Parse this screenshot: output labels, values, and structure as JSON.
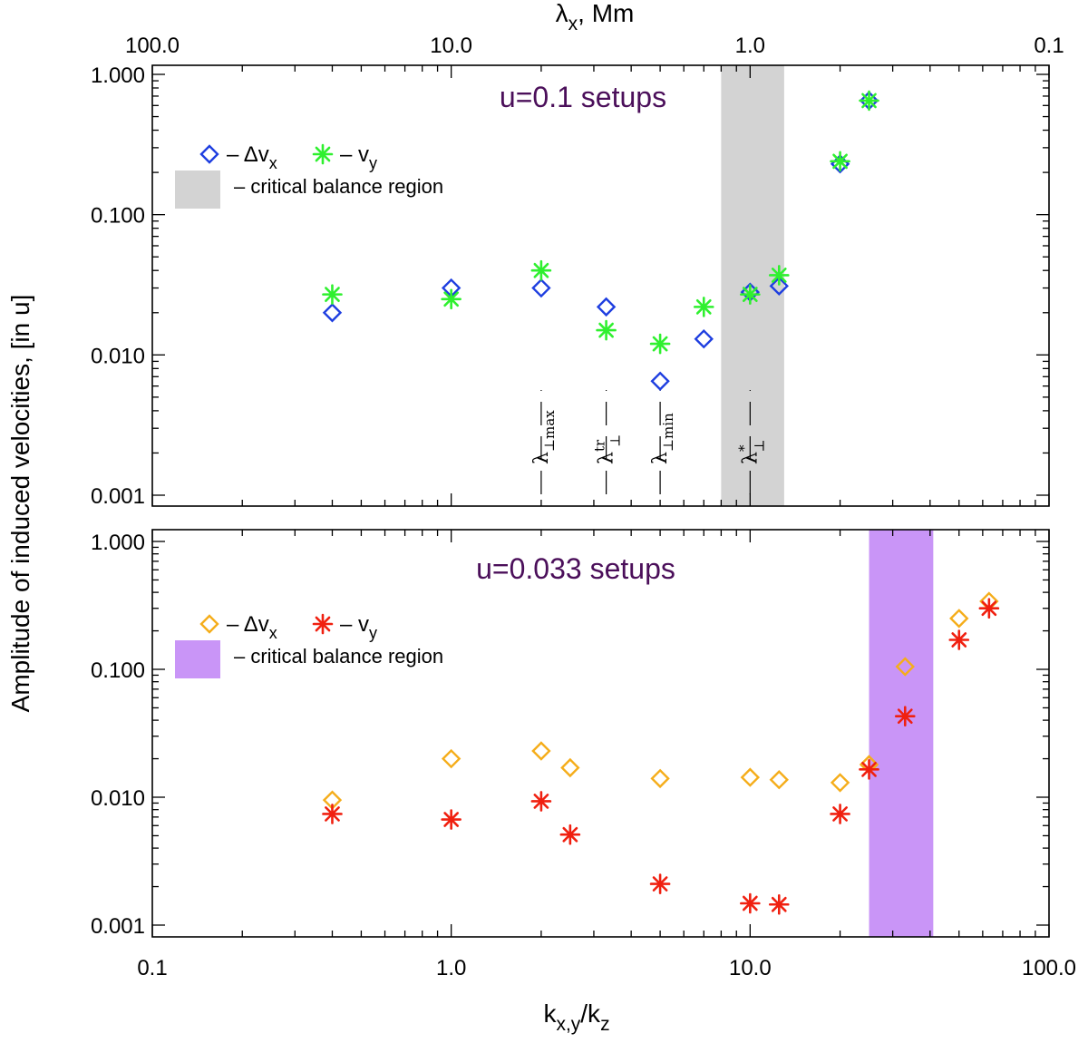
{
  "figure": {
    "ylabel": "Amplitude of induced velocities, [in u]",
    "xlabel_bottom": "k",
    "xlabel_bottom_sub": "x,y",
    "xlabel_bottom_den": "/k",
    "xlabel_bottom_den_sub": "z",
    "xlabel_top": "λ",
    "xlabel_top_sub": "x",
    "xlabel_top_unit": ", Mm"
  },
  "colors": {
    "blue": "#1e3ee0",
    "green": "#2ff02f",
    "orange": "#f5ad1a",
    "red": "#f02010",
    "gray_region": "#d3d3d3",
    "purple_region": "#c995f7",
    "title": "#4b0f5a"
  },
  "chart_data": [
    {
      "type": "scatter",
      "panel": "top",
      "title": "u=0.1 setups",
      "xscale": "log",
      "yscale": "log",
      "xlim": [
        0.1,
        100.0
      ],
      "ylim": [
        0.001,
        1.2
      ],
      "x_ticks": [
        "0.1",
        "1.0",
        "10.0",
        "100.0"
      ],
      "y_ticks": [
        "1.000",
        "0.100",
        "0.010",
        "0.001"
      ],
      "top_axis": {
        "label": "λx, Mm",
        "ticks": [
          "100.0",
          "10.0",
          "1.0",
          "0.1"
        ]
      },
      "shaded_region": {
        "x_from": 8.0,
        "x_to": 13.0,
        "label": "– critical balance region"
      },
      "legend": {
        "placement": "top-left",
        "dvx": "– Δv",
        "dvx_sub": "x",
        "vy": "– v",
        "vy_sub": "y"
      },
      "series": [
        {
          "name": "Δvx",
          "marker": "diamond",
          "color": "#1e3ee0",
          "x": [
            0.4,
            1.0,
            2.0,
            3.3,
            5.0,
            7.0,
            10.0,
            12.5,
            20.0,
            25.0
          ],
          "y": [
            0.02,
            0.03,
            0.03,
            0.022,
            0.0065,
            0.013,
            0.028,
            0.031,
            0.23,
            0.65
          ]
        },
        {
          "name": "vy",
          "marker": "asterisk",
          "color": "#2ff02f",
          "x": [
            0.4,
            1.0,
            2.0,
            3.3,
            5.0,
            7.0,
            10.0,
            12.5,
            20.0,
            25.0
          ],
          "y": [
            0.027,
            0.025,
            0.04,
            0.015,
            0.012,
            0.022,
            0.027,
            0.037,
            0.24,
            0.65
          ]
        }
      ],
      "annotations": [
        {
          "x": 2.0,
          "symbol": "λ",
          "sub": "⊥max",
          "sup": ""
        },
        {
          "x": 3.3,
          "symbol": "λ",
          "sub": "⊥",
          "sup": "tr"
        },
        {
          "x": 5.0,
          "symbol": "λ",
          "sub": "⊥min",
          "sup": ""
        },
        {
          "x": 10.0,
          "symbol": "λ",
          "sub": "⊥",
          "sup": "*"
        }
      ]
    },
    {
      "type": "scatter",
      "panel": "bottom",
      "title": "u=0.033 setups",
      "xscale": "log",
      "yscale": "log",
      "xlim": [
        0.1,
        100.0
      ],
      "ylim": [
        0.001,
        1.2
      ],
      "x_ticks": [
        "0.1",
        "1.0",
        "10.0",
        "100.0"
      ],
      "y_ticks": [
        "1.000",
        "0.100",
        "0.010",
        "0.001"
      ],
      "shaded_region": {
        "x_from": 25.0,
        "x_to": 41.0,
        "label": "– critical balance region"
      },
      "legend": {
        "placement": "top-left",
        "dvx": "– Δv",
        "dvx_sub": "x",
        "vy": "– v",
        "vy_sub": "y"
      },
      "series": [
        {
          "name": "Δvx",
          "marker": "diamond",
          "color": "#f5ad1a",
          "x": [
            0.4,
            1.0,
            2.0,
            2.5,
            5.0,
            10.0,
            12.5,
            20.0,
            25.0,
            33.0,
            50.0,
            63.0
          ],
          "y": [
            0.0095,
            0.02,
            0.023,
            0.017,
            0.014,
            0.0143,
            0.0137,
            0.013,
            0.018,
            0.105,
            0.25,
            0.34
          ]
        },
        {
          "name": "vy",
          "marker": "asterisk",
          "color": "#f02010",
          "x": [
            0.4,
            1.0,
            2.0,
            2.5,
            5.0,
            10.0,
            12.5,
            20.0,
            25.0,
            33.0,
            50.0,
            63.0
          ],
          "y": [
            0.0074,
            0.0067,
            0.0093,
            0.0051,
            0.0021,
            0.00148,
            0.00145,
            0.0074,
            0.0165,
            0.043,
            0.17,
            0.3
          ]
        }
      ]
    }
  ]
}
